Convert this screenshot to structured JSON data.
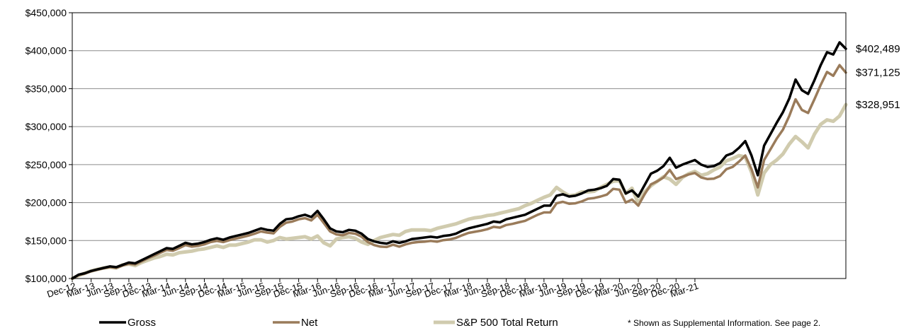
{
  "chart_data": {
    "type": "line",
    "title": "",
    "xlabel": "",
    "ylabel": "",
    "ylim": [
      100000,
      450000
    ],
    "y_ticks": [
      "$100,000",
      "$150,000",
      "$200,000",
      "$250,000",
      "$300,000",
      "$350,000",
      "$400,000",
      "$450,000"
    ],
    "y_tick_values": [
      100000,
      150000,
      200000,
      250000,
      300000,
      350000,
      400000,
      450000
    ],
    "x_ticks": [
      "Dec-12",
      "Mar-13",
      "Jun-13",
      "Sep-13",
      "Dec-13",
      "Mar-14",
      "Jun-14",
      "Sep-14",
      "Dec-14",
      "Mar-15",
      "Jun-15",
      "Sep-15",
      "Dec-15",
      "Mar-16",
      "Jun-16",
      "Sep-16",
      "Dec-16",
      "Mar-17",
      "Jun-17",
      "Sep-17",
      "Dec-17",
      "Mar-18",
      "Jun-18",
      "Sep-18",
      "Dec-18",
      "Mar-19",
      "Jun-19",
      "Sep-19",
      "Dec-19",
      "Mar-20",
      "Jun-20",
      "Sep-20",
      "Dec-20",
      "Mar-21"
    ],
    "grid": true,
    "legend_position": "bottom",
    "series": [
      {
        "name": "Gross",
        "color": "#000000",
        "end_label": "$402,489",
        "values": [
          100000,
          105000,
          107000,
          110000,
          112000,
          114000,
          116000,
          115000,
          118000,
          121000,
          120000,
          124000,
          128000,
          132000,
          136000,
          140000,
          139000,
          143000,
          147000,
          145000,
          146000,
          148000,
          151000,
          153000,
          151000,
          154000,
          156000,
          158000,
          160000,
          163000,
          166000,
          164000,
          163000,
          172000,
          178000,
          179000,
          182000,
          184000,
          181000,
          189000,
          178000,
          166000,
          162000,
          161000,
          164000,
          163000,
          159000,
          152000,
          149000,
          147000,
          146000,
          149000,
          147000,
          149000,
          152000,
          153000,
          154000,
          155000,
          154000,
          156000,
          157000,
          159000,
          163000,
          166000,
          168000,
          170000,
          172000,
          175000,
          174000,
          178000,
          180000,
          182000,
          184000,
          188000,
          192000,
          196000,
          196000,
          209000,
          211000,
          208000,
          209000,
          212000,
          216000,
          217000,
          219000,
          222000,
          231000,
          230000,
          212000,
          216000,
          208000,
          223000,
          238000,
          242000,
          248000,
          259000,
          246000,
          250000,
          253000,
          256000,
          250000,
          247000,
          248000,
          252000,
          262000,
          265000,
          272000,
          281000,
          262000,
          236000,
          275000,
          290000,
          305000,
          319000,
          337000,
          362000,
          348000,
          343000,
          361000,
          381000,
          398000,
          395000,
          411000,
          402489
        ]
      },
      {
        "name": "Net",
        "color": "#9a7b5a",
        "end_label": "$371,125",
        "values": [
          100000,
          104500,
          106500,
          109500,
          111500,
          113500,
          115000,
          114000,
          117000,
          119500,
          118500,
          122500,
          126500,
          130000,
          134000,
          137500,
          136500,
          140000,
          144000,
          142000,
          143000,
          145000,
          148000,
          149500,
          148000,
          150500,
          152500,
          154500,
          156500,
          159000,
          162000,
          160500,
          159500,
          168000,
          173500,
          175000,
          178000,
          179500,
          176500,
          184000,
          173000,
          162000,
          158000,
          157000,
          160000,
          159000,
          155000,
          148000,
          144000,
          142000,
          141500,
          144500,
          142000,
          145000,
          147000,
          148000,
          148500,
          149500,
          148500,
          150500,
          151500,
          153500,
          157000,
          160000,
          161500,
          163000,
          165000,
          168000,
          167000,
          170500,
          172000,
          174000,
          176000,
          180000,
          184000,
          187000,
          187000,
          199000,
          201000,
          198500,
          199000,
          201500,
          205000,
          206000,
          208000,
          210500,
          218000,
          217000,
          200000,
          204000,
          196000,
          211000,
          224000,
          228000,
          233000,
          243000,
          231000,
          234000,
          237000,
          239000,
          233000,
          231000,
          231500,
          235000,
          244000,
          247000,
          254000,
          262000,
          244000,
          220000,
          256000,
          270000,
          284000,
          296000,
          314000,
          336000,
          322000,
          318000,
          336000,
          355000,
          372000,
          367000,
          381000,
          371125
        ]
      },
      {
        "name": "S&P 500 Total Return",
        "color": "#d0cbae",
        "end_label": "$328,951",
        "values": [
          100000,
          104000,
          107000,
          110000,
          112000,
          114000,
          115000,
          114000,
          118000,
          119000,
          117000,
          121000,
          124000,
          127000,
          129000,
          132000,
          131000,
          134000,
          135000,
          136000,
          138000,
          139000,
          141000,
          143000,
          141000,
          144000,
          144000,
          146000,
          148000,
          151000,
          151000,
          148000,
          150000,
          154000,
          152000,
          153000,
          154000,
          155000,
          152000,
          156000,
          147000,
          143000,
          152000,
          154000,
          155000,
          153000,
          148000,
          145000,
          150000,
          154000,
          156000,
          158000,
          157000,
          162000,
          164000,
          164000,
          164000,
          163000,
          166000,
          168000,
          170000,
          172000,
          175000,
          178000,
          180000,
          181000,
          183000,
          184000,
          186000,
          188000,
          190000,
          192000,
          196000,
          199000,
          203000,
          207000,
          210000,
          220000,
          214000,
          209000,
          210000,
          214000,
          214000,
          215000,
          220000,
          224000,
          228000,
          229000,
          212000,
          219000,
          199000,
          214000,
          222000,
          228000,
          234000,
          231000,
          224000,
          233000,
          238000,
          241000,
          236000,
          238000,
          243000,
          247000,
          255000,
          258000,
          262000,
          260000,
          240000,
          210000,
          239000,
          250000,
          256000,
          264000,
          277000,
          287000,
          280000,
          272000,
          290000,
          303000,
          309000,
          307000,
          314000,
          328951
        ]
      }
    ],
    "footnote": "* Shown as Supplemental Information.  See page 2."
  }
}
